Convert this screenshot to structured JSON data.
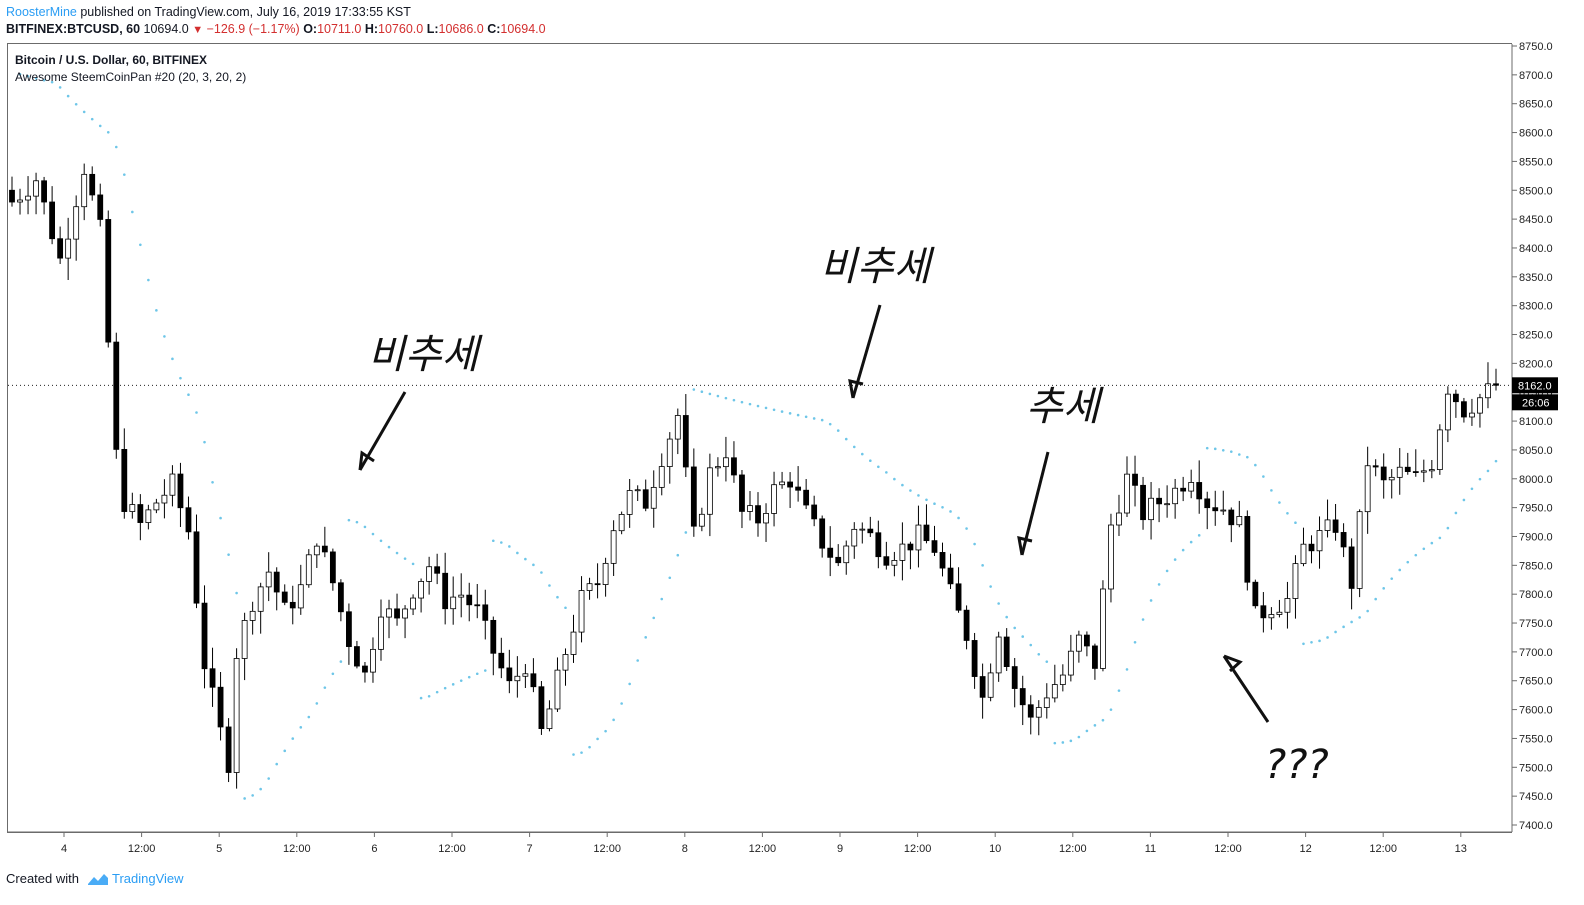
{
  "header": {
    "author": "RoosterMine",
    "published": "published on TradingView.com, July 16, 2019 17:33:55 KST",
    "symbol": "BITFINEX:BTCUSD, 60",
    "last": "10694.0",
    "change": "−126.9 (−1.17%)",
    "o_label": "O:",
    "o_val": "10711.0",
    "h_label": "H:",
    "h_val": "10760.0",
    "l_label": "L:",
    "l_val": "10686.0",
    "c_label": "C:",
    "c_val": "10694.0",
    "down_icon": "triangle-down-icon"
  },
  "legend": {
    "title": "Bitcoin / U.S. Dollar, 60, BITFINEX",
    "indicator": "Awesome SteemCoinPan #20 (20, 3, 20, 2)"
  },
  "price_label": "8162.0",
  "countdown_label": "26:06",
  "annotations": [
    "비추세",
    "비추세",
    "추세",
    "???"
  ],
  "footer": {
    "created": "Created with",
    "brand": "TradingView",
    "logo_icon": "tradingview-logo-icon"
  },
  "colors": {
    "accent": "#2a9df4",
    "down": "#d32f2f",
    "candle_up": "#ffffff",
    "candle_down": "#000000",
    "psar": "#6ec6e8"
  },
  "chart_data": {
    "type": "candlestick",
    "title": "Bitcoin / U.S. Dollar, 60, BITFINEX",
    "y_axis_side": "right",
    "ylim": [
      7400,
      8750
    ],
    "y_ticks": [
      "8750.0",
      "8700.0",
      "8650.0",
      "8600.0",
      "8550.0",
      "8500.0",
      "8450.0",
      "8400.0",
      "8350.0",
      "8300.0",
      "8250.0",
      "8200.0",
      "8150.0",
      "8100.0",
      "8050.0",
      "8000.0",
      "7950.0",
      "7900.0",
      "7850.0",
      "7800.0",
      "7750.0",
      "7700.0",
      "7650.0",
      "7600.0",
      "7550.0",
      "7500.0",
      "7450.0",
      "7400.0"
    ],
    "x_ticks": [
      "4",
      "12:00",
      "5",
      "12:00",
      "6",
      "12:00",
      "7",
      "12:00",
      "8",
      "12:00",
      "9",
      "12:00",
      "10",
      "12:00",
      "11",
      "12:00",
      "12",
      "12:00",
      "13"
    ],
    "close_path": [
      [
        0,
        8480
      ],
      [
        3,
        8520
      ],
      [
        6,
        8380
      ],
      [
        9,
        8540
      ],
      [
        11,
        8430
      ],
      [
        13,
        8040
      ],
      [
        14,
        7960
      ],
      [
        16,
        7920
      ],
      [
        18,
        7960
      ],
      [
        20,
        7990
      ],
      [
        22,
        7910
      ],
      [
        24,
        7680
      ],
      [
        26,
        7560
      ],
      [
        27,
        7510
      ],
      [
        28,
        7700
      ],
      [
        30,
        7790
      ],
      [
        32,
        7840
      ],
      [
        34,
        7770
      ],
      [
        36,
        7810
      ],
      [
        38,
        7900
      ],
      [
        40,
        7820
      ],
      [
        42,
        7720
      ],
      [
        44,
        7660
      ],
      [
        46,
        7780
      ],
      [
        48,
        7750
      ],
      [
        50,
        7810
      ],
      [
        52,
        7850
      ],
      [
        54,
        7790
      ],
      [
        56,
        7800
      ],
      [
        58,
        7770
      ],
      [
        60,
        7700
      ],
      [
        62,
        7640
      ],
      [
        64,
        7680
      ],
      [
        66,
        7560
      ],
      [
        67,
        7600
      ],
      [
        69,
        7700
      ],
      [
        71,
        7790
      ],
      [
        73,
        7820
      ],
      [
        75,
        7920
      ],
      [
        77,
        7970
      ],
      [
        79,
        7960
      ],
      [
        81,
        8040
      ],
      [
        83,
        8110
      ],
      [
        85,
        7900
      ],
      [
        87,
        8010
      ],
      [
        89,
        8050
      ],
      [
        91,
        7940
      ],
      [
        93,
        7930
      ],
      [
        95,
        7980
      ],
      [
        97,
        8000
      ],
      [
        99,
        7940
      ],
      [
        101,
        7890
      ],
      [
        103,
        7850
      ],
      [
        105,
        7920
      ],
      [
        107,
        7900
      ],
      [
        109,
        7870
      ],
      [
        111,
        7880
      ],
      [
        113,
        7900
      ],
      [
        115,
        7880
      ],
      [
        117,
        7800
      ],
      [
        119,
        7730
      ],
      [
        121,
        7620
      ],
      [
        123,
        7740
      ],
      [
        125,
        7640
      ],
      [
        127,
        7580
      ],
      [
        129,
        7630
      ],
      [
        131,
        7660
      ],
      [
        133,
        7720
      ],
      [
        135,
        7680
      ],
      [
        137,
        7920
      ],
      [
        139,
        8000
      ],
      [
        141,
        7940
      ],
      [
        143,
        7960
      ],
      [
        145,
        7980
      ],
      [
        147,
        8010
      ],
      [
        149,
        7960
      ],
      [
        151,
        7950
      ],
      [
        153,
        7920
      ],
      [
        155,
        7760
      ],
      [
        157,
        7780
      ],
      [
        159,
        7790
      ],
      [
        161,
        7880
      ],
      [
        163,
        7900
      ],
      [
        165,
        7920
      ],
      [
        167,
        7820
      ],
      [
        169,
        8030
      ],
      [
        171,
        7990
      ],
      [
        173,
        8010
      ],
      [
        175,
        8000
      ],
      [
        177,
        8030
      ],
      [
        179,
        8160
      ],
      [
        181,
        8120
      ],
      [
        183,
        8140
      ],
      [
        185,
        8162
      ]
    ],
    "psar_dots": "parabolic SAR series shown as light-blue dots above and below the candles"
  }
}
